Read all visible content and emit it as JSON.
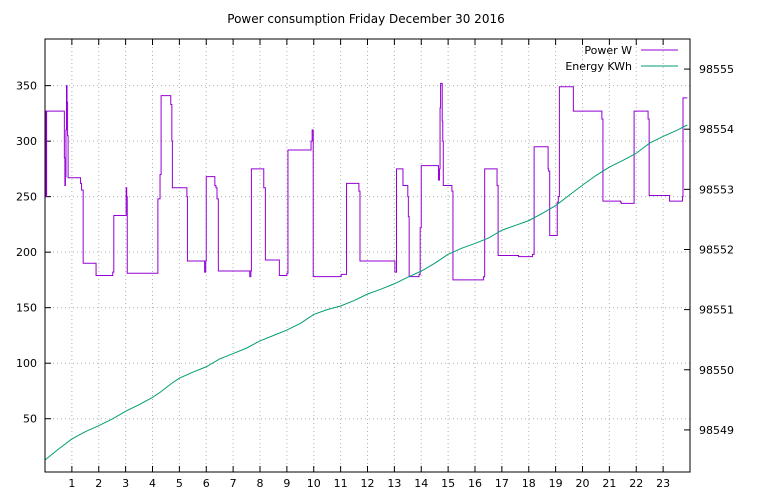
{
  "chart_data": {
    "type": "line",
    "title": "Power consumption Friday December 30 2016",
    "xlabel": "",
    "ylabel": "",
    "y2label": "",
    "xlim": [
      0,
      24
    ],
    "ylim": [
      2,
      392
    ],
    "y2lim": [
      98548.3,
      98555.5
    ],
    "x_ticks": [
      1,
      2,
      3,
      4,
      5,
      6,
      7,
      8,
      9,
      10,
      11,
      12,
      13,
      14,
      15,
      16,
      17,
      18,
      19,
      20,
      21,
      22,
      23
    ],
    "y_ticks": [
      50,
      100,
      150,
      200,
      250,
      300,
      350
    ],
    "y2_ticks": [
      98549,
      98550,
      98551,
      98552,
      98553,
      98554,
      98555
    ],
    "grid": true,
    "legend_position": "top-right",
    "series": [
      {
        "name": "Power W",
        "axis": "left",
        "color": "#9400d3",
        "step": true,
        "points": [
          [
            0.0,
            327
          ],
          [
            0.03,
            250
          ],
          [
            0.06,
            327
          ],
          [
            0.7,
            327
          ],
          [
            0.72,
            285
          ],
          [
            0.74,
            260
          ],
          [
            0.76,
            268
          ],
          [
            0.78,
            310
          ],
          [
            0.8,
            350
          ],
          [
            0.82,
            335
          ],
          [
            0.84,
            305
          ],
          [
            0.86,
            267
          ],
          [
            1.3,
            267
          ],
          [
            1.32,
            262
          ],
          [
            1.36,
            256
          ],
          [
            1.4,
            256
          ],
          [
            1.42,
            190
          ],
          [
            1.88,
            190
          ],
          [
            1.9,
            179
          ],
          [
            2.5,
            179
          ],
          [
            2.52,
            182
          ],
          [
            2.56,
            233
          ],
          [
            3.0,
            233
          ],
          [
            3.02,
            258
          ],
          [
            3.04,
            250
          ],
          [
            3.06,
            181
          ],
          [
            4.15,
            181
          ],
          [
            4.2,
            248
          ],
          [
            4.26,
            248
          ],
          [
            4.28,
            270
          ],
          [
            4.32,
            341
          ],
          [
            4.65,
            341
          ],
          [
            4.68,
            333
          ],
          [
            4.72,
            300
          ],
          [
            4.74,
            258
          ],
          [
            5.25,
            258
          ],
          [
            5.28,
            250
          ],
          [
            5.3,
            192
          ],
          [
            5.9,
            192
          ],
          [
            5.94,
            182
          ],
          [
            5.98,
            192
          ],
          [
            6.0,
            268
          ],
          [
            6.3,
            268
          ],
          [
            6.32,
            260
          ],
          [
            6.36,
            258
          ],
          [
            6.4,
            248
          ],
          [
            6.45,
            183
          ],
          [
            7.6,
            183
          ],
          [
            7.62,
            178
          ],
          [
            7.66,
            183
          ],
          [
            7.68,
            275
          ],
          [
            8.1,
            275
          ],
          [
            8.14,
            258
          ],
          [
            8.2,
            193
          ],
          [
            8.7,
            193
          ],
          [
            8.72,
            179
          ],
          [
            8.98,
            179
          ],
          [
            9.0,
            181
          ],
          [
            9.04,
            292
          ],
          [
            9.88,
            292
          ],
          [
            9.9,
            300
          ],
          [
            9.94,
            310
          ],
          [
            9.98,
            178
          ],
          [
            11.0,
            178
          ],
          [
            11.02,
            180
          ],
          [
            11.2,
            180
          ],
          [
            11.22,
            262
          ],
          [
            11.65,
            262
          ],
          [
            11.68,
            255
          ],
          [
            11.72,
            192
          ],
          [
            13.0,
            192
          ],
          [
            13.02,
            182
          ],
          [
            13.04,
            182
          ],
          [
            13.08,
            275
          ],
          [
            13.3,
            275
          ],
          [
            13.32,
            260
          ],
          [
            13.48,
            260
          ],
          [
            13.5,
            250
          ],
          [
            13.52,
            232
          ],
          [
            13.55,
            178
          ],
          [
            13.9,
            178
          ],
          [
            13.92,
            180
          ],
          [
            13.96,
            222
          ],
          [
            14.0,
            278
          ],
          [
            14.6,
            278
          ],
          [
            14.64,
            265
          ],
          [
            14.68,
            275
          ],
          [
            14.7,
            330
          ],
          [
            14.72,
            352
          ],
          [
            14.76,
            352
          ],
          [
            14.78,
            318
          ],
          [
            14.8,
            300
          ],
          [
            14.82,
            260
          ],
          [
            15.1,
            260
          ],
          [
            15.14,
            255
          ],
          [
            15.18,
            175
          ],
          [
            16.3,
            175
          ],
          [
            16.32,
            178
          ],
          [
            16.36,
            275
          ],
          [
            16.8,
            275
          ],
          [
            16.82,
            260
          ],
          [
            16.86,
            197
          ],
          [
            17.6,
            197
          ],
          [
            17.62,
            196
          ],
          [
            18.1,
            196
          ],
          [
            18.14,
            198
          ],
          [
            18.2,
            295
          ],
          [
            18.7,
            295
          ],
          [
            18.72,
            275
          ],
          [
            18.74,
            273
          ],
          [
            18.78,
            215
          ],
          [
            19.0,
            215
          ],
          [
            19.02,
            215
          ],
          [
            19.06,
            245
          ],
          [
            19.1,
            250
          ],
          [
            19.14,
            349
          ],
          [
            19.62,
            349
          ],
          [
            19.66,
            327
          ],
          [
            20.7,
            327
          ],
          [
            20.72,
            320
          ],
          [
            20.76,
            246
          ],
          [
            21.4,
            246
          ],
          [
            21.42,
            245
          ],
          [
            21.44,
            244
          ],
          [
            21.88,
            244
          ],
          [
            21.92,
            327
          ],
          [
            22.4,
            327
          ],
          [
            22.44,
            320
          ],
          [
            22.48,
            251
          ],
          [
            23.2,
            251
          ],
          [
            23.24,
            246
          ],
          [
            23.7,
            246
          ],
          [
            23.72,
            250
          ],
          [
            23.74,
            339
          ],
          [
            23.9,
            339
          ]
        ]
      },
      {
        "name": "Energy KWh",
        "axis": "right",
        "color": "#009e73",
        "step": false,
        "points": [
          [
            0.0,
            98548.5
          ],
          [
            0.5,
            98548.68
          ],
          [
            1.0,
            98548.85
          ],
          [
            1.5,
            98548.97
          ],
          [
            2.0,
            98549.07
          ],
          [
            2.5,
            98549.18
          ],
          [
            3.0,
            98549.31
          ],
          [
            3.5,
            98549.42
          ],
          [
            4.0,
            98549.54
          ],
          [
            4.3,
            98549.63
          ],
          [
            4.7,
            98549.77
          ],
          [
            5.0,
            98549.86
          ],
          [
            5.5,
            98549.96
          ],
          [
            6.0,
            98550.05
          ],
          [
            6.5,
            98550.18
          ],
          [
            7.0,
            98550.27
          ],
          [
            7.5,
            98550.36
          ],
          [
            8.0,
            98550.48
          ],
          [
            8.5,
            98550.57
          ],
          [
            9.0,
            98550.66
          ],
          [
            9.5,
            98550.77
          ],
          [
            10.0,
            98550.92
          ],
          [
            10.5,
            98551.0
          ],
          [
            11.0,
            98551.06
          ],
          [
            11.5,
            98551.15
          ],
          [
            12.0,
            98551.26
          ],
          [
            12.5,
            98551.34
          ],
          [
            13.0,
            98551.43
          ],
          [
            13.5,
            98551.54
          ],
          [
            14.0,
            98551.64
          ],
          [
            14.5,
            98551.77
          ],
          [
            15.0,
            98551.92
          ],
          [
            15.5,
            98552.02
          ],
          [
            16.0,
            98552.1
          ],
          [
            16.5,
            98552.19
          ],
          [
            17.0,
            98552.32
          ],
          [
            17.5,
            98552.4
          ],
          [
            18.0,
            98552.48
          ],
          [
            18.5,
            98552.6
          ],
          [
            19.0,
            98552.73
          ],
          [
            19.5,
            98552.9
          ],
          [
            20.0,
            98553.07
          ],
          [
            20.5,
            98553.23
          ],
          [
            21.0,
            98553.37
          ],
          [
            21.5,
            98553.48
          ],
          [
            22.0,
            98553.6
          ],
          [
            22.5,
            98553.77
          ],
          [
            23.0,
            98553.88
          ],
          [
            23.5,
            98553.98
          ],
          [
            23.9,
            98554.07
          ]
        ]
      }
    ]
  }
}
